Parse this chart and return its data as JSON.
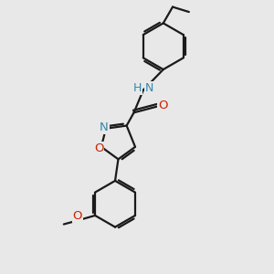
{
  "background_color": "#e8e8e8",
  "bond_color": "#1a1a1a",
  "bond_width": 1.6,
  "dbo": 0.035,
  "atom_colors": {
    "N": "#3388aa",
    "O": "#cc2200"
  },
  "font_size": 9.5,
  "fig_width": 3.0,
  "fig_height": 3.0,
  "dpi": 100,
  "xlim": [
    -1.3,
    1.5
  ],
  "ylim": [
    -2.3,
    2.0
  ]
}
